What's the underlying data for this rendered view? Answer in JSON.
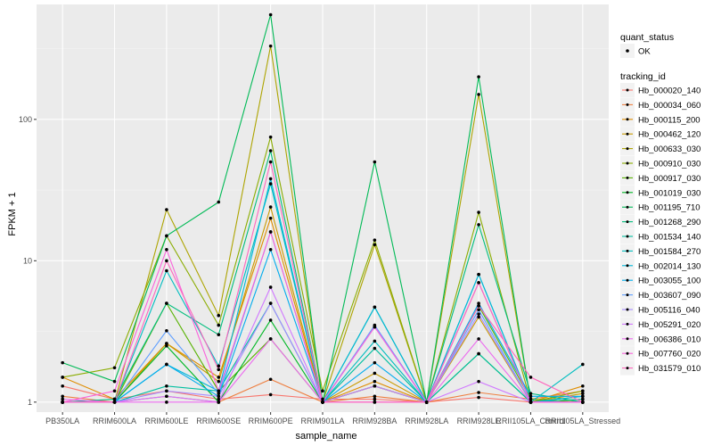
{
  "chart_data": {
    "type": "line",
    "xlabel": "sample_name",
    "ylabel": "FPKM + 1",
    "y_scale": "log10",
    "ylim": [
      0.85,
      650
    ],
    "y_ticks": [
      1,
      10,
      100
    ],
    "y_tick_labels": [
      "1",
      "10",
      "100"
    ],
    "grid": true,
    "legend_position": "right",
    "categories": [
      "PB350LA",
      "RRIM600LA",
      "RRIM600LE",
      "RRIM600SE",
      "RRIM600PE",
      "RRIM901LA",
      "RRIM928BA",
      "RRIM928LA",
      "RRIM928LE",
      "RRII105LA_Control",
      "RRII105LA_Stressed"
    ],
    "quant_legend": {
      "title": "quant_status",
      "entries": [
        "OK"
      ]
    },
    "series_legend_title": "tracking_id",
    "series": [
      {
        "name": "Hb_000020_140",
        "color": "#F8766D",
        "values": [
          1.3,
          1.05,
          1.2,
          1.05,
          1.13,
          1.05,
          1.05,
          1.0,
          1.08,
          1.0,
          1.05
        ]
      },
      {
        "name": "Hb_000034_060",
        "color": "#EE7F40",
        "values": [
          1.1,
          1.0,
          1.1,
          1.0,
          1.45,
          1.0,
          1.1,
          1.0,
          1.17,
          1.05,
          1.2
        ]
      },
      {
        "name": "Hb_000115_200",
        "color": "#DF8D00",
        "values": [
          1.5,
          1.05,
          2.6,
          1.5,
          20.0,
          1.0,
          1.4,
          1.0,
          7.0,
          1.0,
          1.3
        ]
      },
      {
        "name": "Hb_000462_120",
        "color": "#C99A00",
        "values": [
          1.0,
          1.0,
          2.6,
          1.4,
          24.0,
          1.0,
          1.6,
          1.0,
          4.0,
          1.0,
          1.15
        ]
      },
      {
        "name": "Hb_000633_030",
        "color": "#ADA400",
        "values": [
          1.0,
          1.0,
          23.0,
          4.1,
          330,
          1.0,
          13.0,
          1.0,
          150,
          1.0,
          1.1
        ]
      },
      {
        "name": "Hb_000910_030",
        "color": "#8AAC00",
        "values": [
          1.5,
          1.75,
          15.0,
          3.5,
          75.0,
          1.2,
          14.0,
          1.0,
          22.0,
          1.0,
          1.2
        ]
      },
      {
        "name": "Hb_000917_030",
        "color": "#57B200",
        "values": [
          1.0,
          1.0,
          5.0,
          1.2,
          2.8,
          1.0,
          1.3,
          1.0,
          4.8,
          1.05,
          1.0
        ]
      },
      {
        "name": "Hb_001019_030",
        "color": "#00B825",
        "values": [
          1.0,
          1.0,
          2.5,
          1.0,
          3.8,
          1.0,
          1.3,
          1.0,
          2.2,
          1.0,
          1.0
        ]
      },
      {
        "name": "Hb_001195_710",
        "color": "#00BA56",
        "values": [
          1.9,
          1.4,
          15.0,
          26.0,
          550,
          1.0,
          50.0,
          1.0,
          200,
          1.0,
          1.0
        ]
      },
      {
        "name": "Hb_001268_290",
        "color": "#00BE7D",
        "values": [
          1.0,
          1.05,
          5.0,
          3.0,
          60.0,
          1.0,
          4.7,
          1.0,
          18.0,
          1.15,
          1.0
        ]
      },
      {
        "name": "Hb_001534_140",
        "color": "#00BFA0",
        "values": [
          1.0,
          1.0,
          1.3,
          1.2,
          5.0,
          1.0,
          2.4,
          1.0,
          2.2,
          1.0,
          1.05
        ]
      },
      {
        "name": "Hb_001584_270",
        "color": "#00BDC0",
        "values": [
          1.0,
          1.0,
          8.5,
          1.8,
          35.0,
          1.0,
          2.7,
          1.0,
          8.0,
          1.0,
          1.85
        ]
      },
      {
        "name": "Hb_002014_130",
        "color": "#00B7DA",
        "values": [
          1.0,
          1.0,
          1.85,
          1.2,
          38.0,
          1.0,
          4.7,
          1.0,
          8.0,
          1.0,
          1.1
        ]
      },
      {
        "name": "Hb_003055_100",
        "color": "#00ACED",
        "values": [
          1.0,
          1.0,
          1.85,
          1.1,
          12.0,
          1.0,
          1.9,
          1.0,
          5.0,
          1.1,
          1.1
        ]
      },
      {
        "name": "Hb_003607_090",
        "color": "#5E9EFF",
        "values": [
          1.0,
          1.0,
          3.2,
          1.15,
          16.0,
          1.0,
          3.5,
          1.0,
          4.5,
          1.0,
          1.0
        ]
      },
      {
        "name": "Hb_005116_040",
        "color": "#A58AFF",
        "values": [
          1.0,
          1.0,
          1.2,
          1.1,
          5.0,
          1.0,
          3.4,
          1.0,
          4.2,
          1.0,
          1.0
        ]
      },
      {
        "name": "Hb_005291_020",
        "color": "#D078FF",
        "values": [
          1.0,
          1.0,
          1.1,
          1.0,
          6.5,
          1.0,
          1.3,
          1.0,
          1.4,
          1.0,
          1.0
        ]
      },
      {
        "name": "Hb_006386_010",
        "color": "#EC69EF",
        "values": [
          1.05,
          1.0,
          1.0,
          1.0,
          2.8,
          1.0,
          1.0,
          1.0,
          2.8,
          1.0,
          1.0
        ]
      },
      {
        "name": "Hb_007760_020",
        "color": "#FA62DB",
        "values": [
          1.0,
          1.2,
          12.0,
          1.2,
          16.0,
          1.0,
          3.4,
          1.0,
          7.0,
          1.0,
          1.0
        ]
      },
      {
        "name": "Hb_031579_010",
        "color": "#FF65BD",
        "values": [
          1.0,
          1.0,
          10.0,
          1.7,
          50.0,
          1.0,
          1.0,
          1.0,
          4.8,
          1.5,
          1.0
        ]
      }
    ]
  }
}
